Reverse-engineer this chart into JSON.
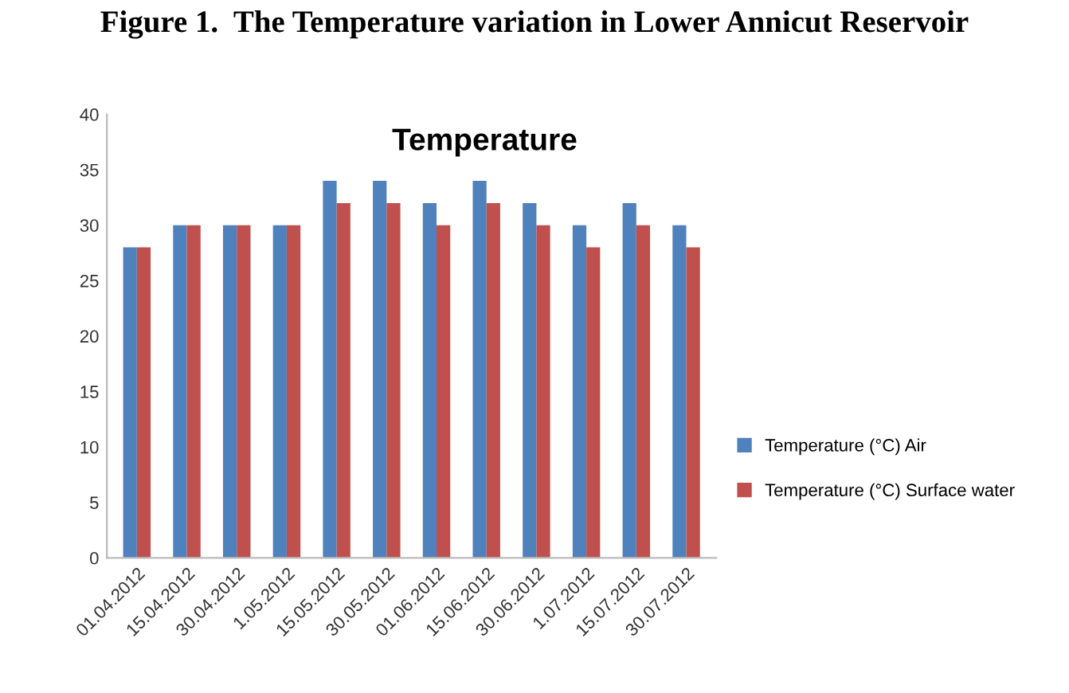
{
  "chart_data": {
    "type": "bar",
    "title": "Figure 1.  The Temperature variation in Lower Annicut Reservoir",
    "subtitle": "Temperature",
    "categories": [
      "01.04.2012",
      "15.04.2012",
      "30.04.2012",
      "1.05.2012",
      "15.05.2012",
      "30.05.2012",
      "01.06.2012",
      "15.06.2012",
      "30.06.2012",
      "1.07.2012",
      "15.07.2012",
      "30.07.2012"
    ],
    "series": [
      {
        "name": "Temperature (°C) Air",
        "color": "#4f81bd",
        "values": [
          28,
          30,
          30,
          30,
          34,
          34,
          32,
          34,
          32,
          30,
          32,
          30
        ]
      },
      {
        "name": "Temperature (°C) Surface water",
        "color": "#c0504d",
        "values": [
          28,
          30,
          30,
          30,
          32,
          32,
          30,
          32,
          30,
          28,
          30,
          28
        ]
      }
    ],
    "ylim": [
      0,
      40
    ],
    "yticks": [
      0,
      5,
      10,
      15,
      20,
      25,
      30,
      35,
      40
    ],
    "grid": false,
    "legend": "right"
  }
}
